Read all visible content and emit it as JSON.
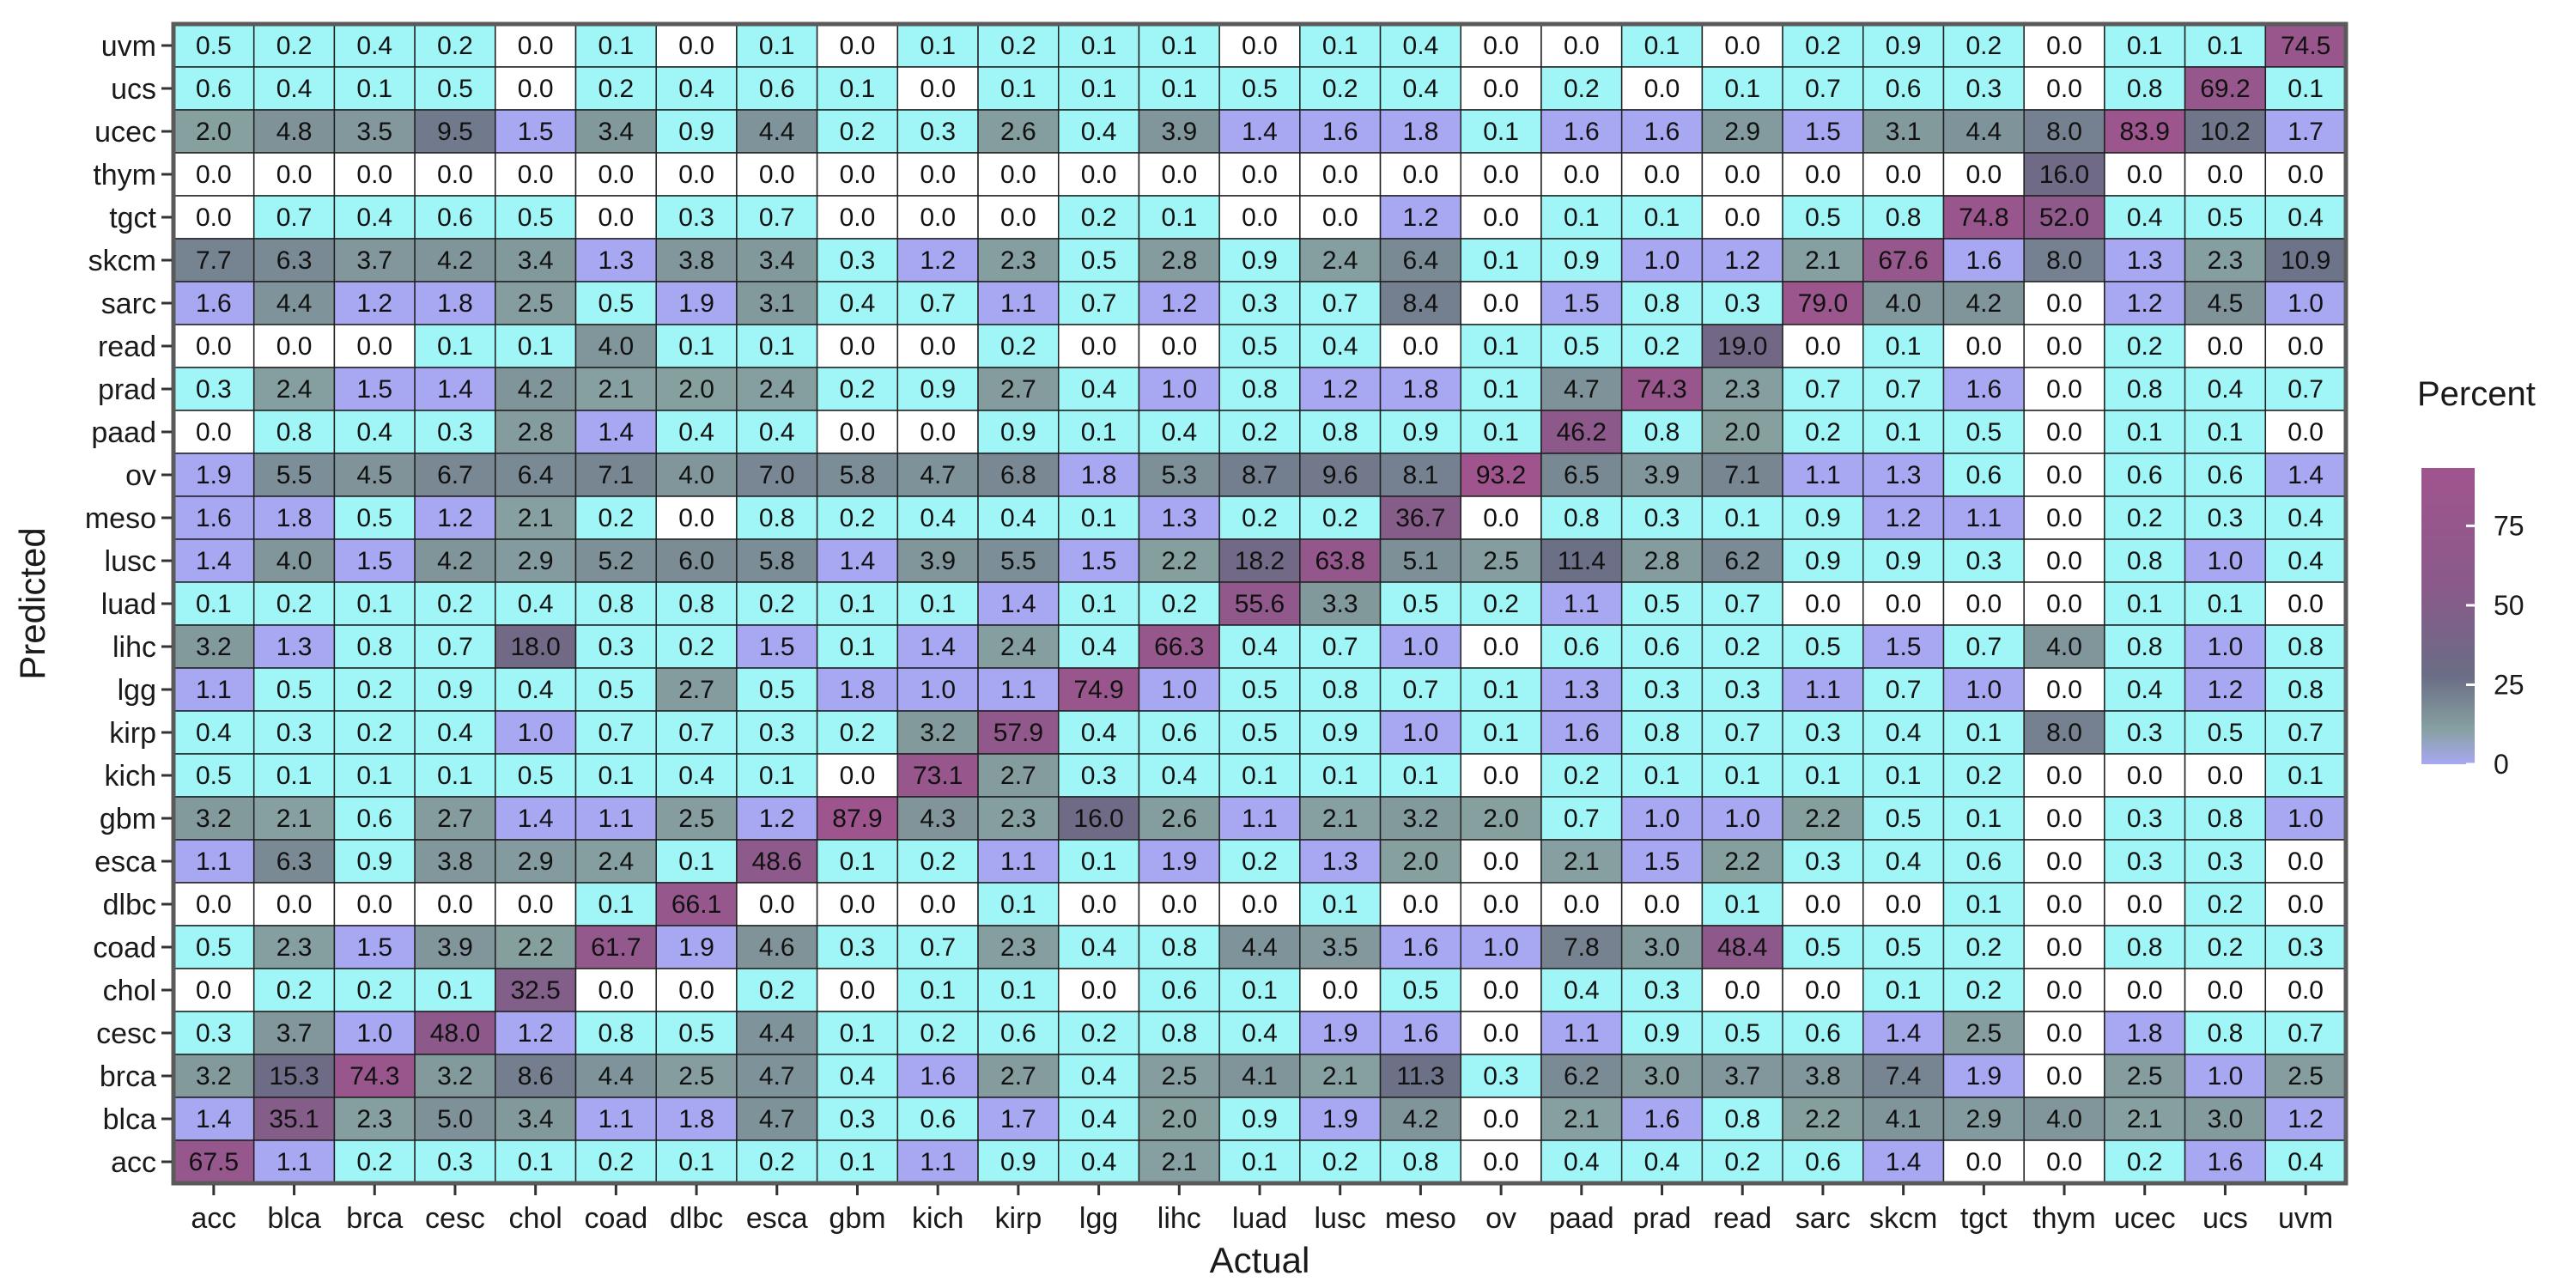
{
  "chart_data": {
    "type": "heatmap",
    "xlabel": "Actual",
    "ylabel": "Predicted",
    "x_categories": [
      "acc",
      "blca",
      "brca",
      "cesc",
      "chol",
      "coad",
      "dlbc",
      "esca",
      "gbm",
      "kich",
      "kirp",
      "lgg",
      "lihc",
      "luad",
      "lusc",
      "meso",
      "ov",
      "paad",
      "prad",
      "read",
      "sarc",
      "skcm",
      "tgct",
      "thym",
      "ucec",
      "ucs",
      "uvm"
    ],
    "y_categories_top_to_bottom": [
      "uvm",
      "ucs",
      "ucec",
      "thym",
      "tgct",
      "skcm",
      "sarc",
      "read",
      "prad",
      "paad",
      "ov",
      "meso",
      "lusc",
      "luad",
      "lihc",
      "lgg",
      "kirp",
      "kich",
      "gbm",
      "esca",
      "dlbc",
      "coad",
      "chol",
      "cesc",
      "brca",
      "blca",
      "acc"
    ],
    "values": [
      [
        "0.5",
        "0.2",
        "0.4",
        "0.2",
        "0.0",
        "0.1",
        "0.0",
        "0.1",
        "0.0",
        "0.1",
        "0.2",
        "0.1",
        "0.1",
        "0.0",
        "0.1",
        "0.4",
        "0.0",
        "0.0",
        "0.1",
        "0.0",
        "0.2",
        "0.9",
        "0.2",
        "0.0",
        "0.1",
        "0.1",
        "74.5"
      ],
      [
        "0.6",
        "0.4",
        "0.1",
        "0.5",
        "0.0",
        "0.2",
        "0.4",
        "0.6",
        "0.1",
        "0.0",
        "0.1",
        "0.1",
        "0.1",
        "0.5",
        "0.2",
        "0.4",
        "0.0",
        "0.2",
        "0.0",
        "0.1",
        "0.7",
        "0.6",
        "0.3",
        "0.0",
        "0.8",
        "69.2",
        "0.1"
      ],
      [
        "2.0",
        "4.8",
        "3.5",
        "9.5",
        "1.5",
        "3.4",
        "0.9",
        "4.4",
        "0.2",
        "0.3",
        "2.6",
        "0.4",
        "3.9",
        "1.4",
        "1.6",
        "1.8",
        "0.1",
        "1.6",
        "1.6",
        "2.9",
        "1.5",
        "3.1",
        "4.4",
        "8.0",
        "83.9",
        "10.2",
        "1.7"
      ],
      [
        "0.0",
        "0.0",
        "0.0",
        "0.0",
        "0.0",
        "0.0",
        "0.0",
        "0.0",
        "0.0",
        "0.0",
        "0.0",
        "0.0",
        "0.0",
        "0.0",
        "0.0",
        "0.0",
        "0.0",
        "0.0",
        "0.0",
        "0.0",
        "0.0",
        "0.0",
        "0.0",
        "16.0",
        "0.0",
        "0.0",
        "0.0"
      ],
      [
        "0.0",
        "0.7",
        "0.4",
        "0.6",
        "0.5",
        "0.0",
        "0.3",
        "0.7",
        "0.0",
        "0.0",
        "0.0",
        "0.2",
        "0.1",
        "0.0",
        "0.0",
        "1.2",
        "0.0",
        "0.1",
        "0.1",
        "0.0",
        "0.5",
        "0.8",
        "74.8",
        "52.0",
        "0.4",
        "0.5",
        "0.4"
      ],
      [
        "7.7",
        "6.3",
        "3.7",
        "4.2",
        "3.4",
        "1.3",
        "3.8",
        "3.4",
        "0.3",
        "1.2",
        "2.3",
        "0.5",
        "2.8",
        "0.9",
        "2.4",
        "6.4",
        "0.1",
        "0.9",
        "1.0",
        "1.2",
        "2.1",
        "67.6",
        "1.6",
        "8.0",
        "1.3",
        "2.3",
        "10.9"
      ],
      [
        "1.6",
        "4.4",
        "1.2",
        "1.8",
        "2.5",
        "0.5",
        "1.9",
        "3.1",
        "0.4",
        "0.7",
        "1.1",
        "0.7",
        "1.2",
        "0.3",
        "0.7",
        "8.4",
        "0.0",
        "1.5",
        "0.8",
        "0.3",
        "79.0",
        "4.0",
        "4.2",
        "0.0",
        "1.2",
        "4.5",
        "1.0"
      ],
      [
        "0.0",
        "0.0",
        "0.0",
        "0.1",
        "0.1",
        "4.0",
        "0.1",
        "0.1",
        "0.0",
        "0.0",
        "0.2",
        "0.0",
        "0.0",
        "0.5",
        "0.4",
        "0.0",
        "0.1",
        "0.5",
        "0.2",
        "19.0",
        "0.0",
        "0.1",
        "0.0",
        "0.0",
        "0.2",
        "0.0",
        "0.0"
      ],
      [
        "0.3",
        "2.4",
        "1.5",
        "1.4",
        "4.2",
        "2.1",
        "2.0",
        "2.4",
        "0.2",
        "0.9",
        "2.7",
        "0.4",
        "1.0",
        "0.8",
        "1.2",
        "1.8",
        "0.1",
        "4.7",
        "74.3",
        "2.3",
        "0.7",
        "0.7",
        "1.6",
        "0.0",
        "0.8",
        "0.4",
        "0.7"
      ],
      [
        "0.0",
        "0.8",
        "0.4",
        "0.3",
        "2.8",
        "1.4",
        "0.4",
        "0.4",
        "0.0",
        "0.0",
        "0.9",
        "0.1",
        "0.4",
        "0.2",
        "0.8",
        "0.9",
        "0.1",
        "46.2",
        "0.8",
        "2.0",
        "0.2",
        "0.1",
        "0.5",
        "0.0",
        "0.1",
        "0.1",
        "0.0"
      ],
      [
        "1.9",
        "5.5",
        "4.5",
        "6.7",
        "6.4",
        "7.1",
        "4.0",
        "7.0",
        "5.8",
        "4.7",
        "6.8",
        "1.8",
        "5.3",
        "8.7",
        "9.6",
        "8.1",
        "93.2",
        "6.5",
        "3.9",
        "7.1",
        "1.1",
        "1.3",
        "0.6",
        "0.0",
        "0.6",
        "0.6",
        "1.4"
      ],
      [
        "1.6",
        "1.8",
        "0.5",
        "1.2",
        "2.1",
        "0.2",
        "0.0",
        "0.8",
        "0.2",
        "0.4",
        "0.4",
        "0.1",
        "1.3",
        "0.2",
        "0.2",
        "36.7",
        "0.0",
        "0.8",
        "0.3",
        "0.1",
        "0.9",
        "1.2",
        "1.1",
        "0.0",
        "0.2",
        "0.3",
        "0.4"
      ],
      [
        "1.4",
        "4.0",
        "1.5",
        "4.2",
        "2.9",
        "5.2",
        "6.0",
        "5.8",
        "1.4",
        "3.9",
        "5.5",
        "1.5",
        "2.2",
        "18.2",
        "63.8",
        "5.1",
        "2.5",
        "11.4",
        "2.8",
        "6.2",
        "0.9",
        "0.9",
        "0.3",
        "0.0",
        "0.8",
        "1.0",
        "0.4"
      ],
      [
        "0.1",
        "0.2",
        "0.1",
        "0.2",
        "0.4",
        "0.8",
        "0.8",
        "0.2",
        "0.1",
        "0.1",
        "1.4",
        "0.1",
        "0.2",
        "55.6",
        "3.3",
        "0.5",
        "0.2",
        "1.1",
        "0.5",
        "0.7",
        "0.0",
        "0.0",
        "0.0",
        "0.0",
        "0.1",
        "0.1",
        "0.0"
      ],
      [
        "3.2",
        "1.3",
        "0.8",
        "0.7",
        "18.0",
        "0.3",
        "0.2",
        "1.5",
        "0.1",
        "1.4",
        "2.4",
        "0.4",
        "66.3",
        "0.4",
        "0.7",
        "1.0",
        "0.0",
        "0.6",
        "0.6",
        "0.2",
        "0.5",
        "1.5",
        "0.7",
        "4.0",
        "0.8",
        "1.0",
        "0.8"
      ],
      [
        "1.1",
        "0.5",
        "0.2",
        "0.9",
        "0.4",
        "0.5",
        "2.7",
        "0.5",
        "1.8",
        "1.0",
        "1.1",
        "74.9",
        "1.0",
        "0.5",
        "0.8",
        "0.7",
        "0.1",
        "1.3",
        "0.3",
        "0.3",
        "1.1",
        "0.7",
        "1.0",
        "0.0",
        "0.4",
        "1.2",
        "0.8"
      ],
      [
        "0.4",
        "0.3",
        "0.2",
        "0.4",
        "1.0",
        "0.7",
        "0.7",
        "0.3",
        "0.2",
        "3.2",
        "57.9",
        "0.4",
        "0.6",
        "0.5",
        "0.9",
        "1.0",
        "0.1",
        "1.6",
        "0.8",
        "0.7",
        "0.3",
        "0.4",
        "0.1",
        "8.0",
        "0.3",
        "0.5",
        "0.7"
      ],
      [
        "0.5",
        "0.1",
        "0.1",
        "0.1",
        "0.5",
        "0.1",
        "0.4",
        "0.1",
        "0.0",
        "73.1",
        "2.7",
        "0.3",
        "0.4",
        "0.1",
        "0.1",
        "0.1",
        "0.0",
        "0.2",
        "0.1",
        "0.1",
        "0.1",
        "0.1",
        "0.2",
        "0.0",
        "0.0",
        "0.0",
        "0.1"
      ],
      [
        "3.2",
        "2.1",
        "0.6",
        "2.7",
        "1.4",
        "1.1",
        "2.5",
        "1.2",
        "87.9",
        "4.3",
        "2.3",
        "16.0",
        "2.6",
        "1.1",
        "2.1",
        "3.2",
        "2.0",
        "0.7",
        "1.0",
        "1.0",
        "2.2",
        "0.5",
        "0.1",
        "0.0",
        "0.3",
        "0.8",
        "1.0"
      ],
      [
        "1.1",
        "6.3",
        "0.9",
        "3.8",
        "2.9",
        "2.4",
        "0.1",
        "48.6",
        "0.1",
        "0.2",
        "1.1",
        "0.1",
        "1.9",
        "0.2",
        "1.3",
        "2.0",
        "0.0",
        "2.1",
        "1.5",
        "2.2",
        "0.3",
        "0.4",
        "0.6",
        "0.0",
        "0.3",
        "0.3",
        "0.0"
      ],
      [
        "0.0",
        "0.0",
        "0.0",
        "0.0",
        "0.0",
        "0.1",
        "66.1",
        "0.0",
        "0.0",
        "0.0",
        "0.1",
        "0.0",
        "0.0",
        "0.0",
        "0.1",
        "0.0",
        "0.0",
        "0.0",
        "0.0",
        "0.1",
        "0.0",
        "0.0",
        "0.1",
        "0.0",
        "0.0",
        "0.2",
        "0.0"
      ],
      [
        "0.5",
        "2.3",
        "1.5",
        "3.9",
        "2.2",
        "61.7",
        "1.9",
        "4.6",
        "0.3",
        "0.7",
        "2.3",
        "0.4",
        "0.8",
        "4.4",
        "3.5",
        "1.6",
        "1.0",
        "7.8",
        "3.0",
        "48.4",
        "0.5",
        "0.5",
        "0.2",
        "0.0",
        "0.8",
        "0.2",
        "0.3"
      ],
      [
        "0.0",
        "0.2",
        "0.2",
        "0.1",
        "32.5",
        "0.0",
        "0.0",
        "0.2",
        "0.0",
        "0.1",
        "0.1",
        "0.0",
        "0.6",
        "0.1",
        "0.0",
        "0.5",
        "0.0",
        "0.4",
        "0.3",
        "0.0",
        "0.0",
        "0.1",
        "0.2",
        "0.0",
        "0.0",
        "0.0",
        "0.0"
      ],
      [
        "0.3",
        "3.7",
        "1.0",
        "48.0",
        "1.2",
        "0.8",
        "0.5",
        "4.4",
        "0.1",
        "0.2",
        "0.6",
        "0.2",
        "0.8",
        "0.4",
        "1.9",
        "1.6",
        "0.0",
        "1.1",
        "0.9",
        "0.5",
        "0.6",
        "1.4",
        "2.5",
        "0.0",
        "1.8",
        "0.8",
        "0.7"
      ],
      [
        "3.2",
        "15.3",
        "74.3",
        "3.2",
        "8.6",
        "4.4",
        "2.5",
        "4.7",
        "0.4",
        "1.6",
        "2.7",
        "0.4",
        "2.5",
        "4.1",
        "2.1",
        "11.3",
        "0.3",
        "6.2",
        "3.0",
        "3.7",
        "3.8",
        "7.4",
        "1.9",
        "0.0",
        "2.5",
        "1.0",
        "2.5"
      ],
      [
        "1.4",
        "35.1",
        "2.3",
        "5.0",
        "3.4",
        "1.1",
        "1.8",
        "4.7",
        "0.3",
        "0.6",
        "1.7",
        "0.4",
        "2.0",
        "0.9",
        "1.9",
        "4.2",
        "0.0",
        "2.1",
        "1.6",
        "0.8",
        "2.2",
        "4.1",
        "2.9",
        "4.0",
        "2.1",
        "3.0",
        "1.2"
      ],
      [
        "67.5",
        "1.1",
        "0.2",
        "0.3",
        "0.1",
        "0.2",
        "0.1",
        "0.2",
        "0.1",
        "1.1",
        "0.9",
        "0.4",
        "2.1",
        "0.1",
        "0.2",
        "0.8",
        "0.0",
        "0.4",
        "0.4",
        "0.2",
        "0.6",
        "1.4",
        "0.0",
        "0.0",
        "0.2",
        "1.6",
        "0.4"
      ]
    ],
    "legend": {
      "title": "Percent",
      "ticks": [
        "75",
        "50",
        "25",
        "0"
      ],
      "range": [
        0,
        93.2
      ],
      "placement": "right"
    },
    "colors": {
      "zero_cell": "#ffffff",
      "low": "#a0f6f6",
      "low_mid": "#a8a8f2",
      "mid": "#86a0a0",
      "mid_high": "#6a6d85",
      "high": "#a0548e",
      "frame": "#5a5a5a",
      "cell_border": "#202020"
    }
  }
}
